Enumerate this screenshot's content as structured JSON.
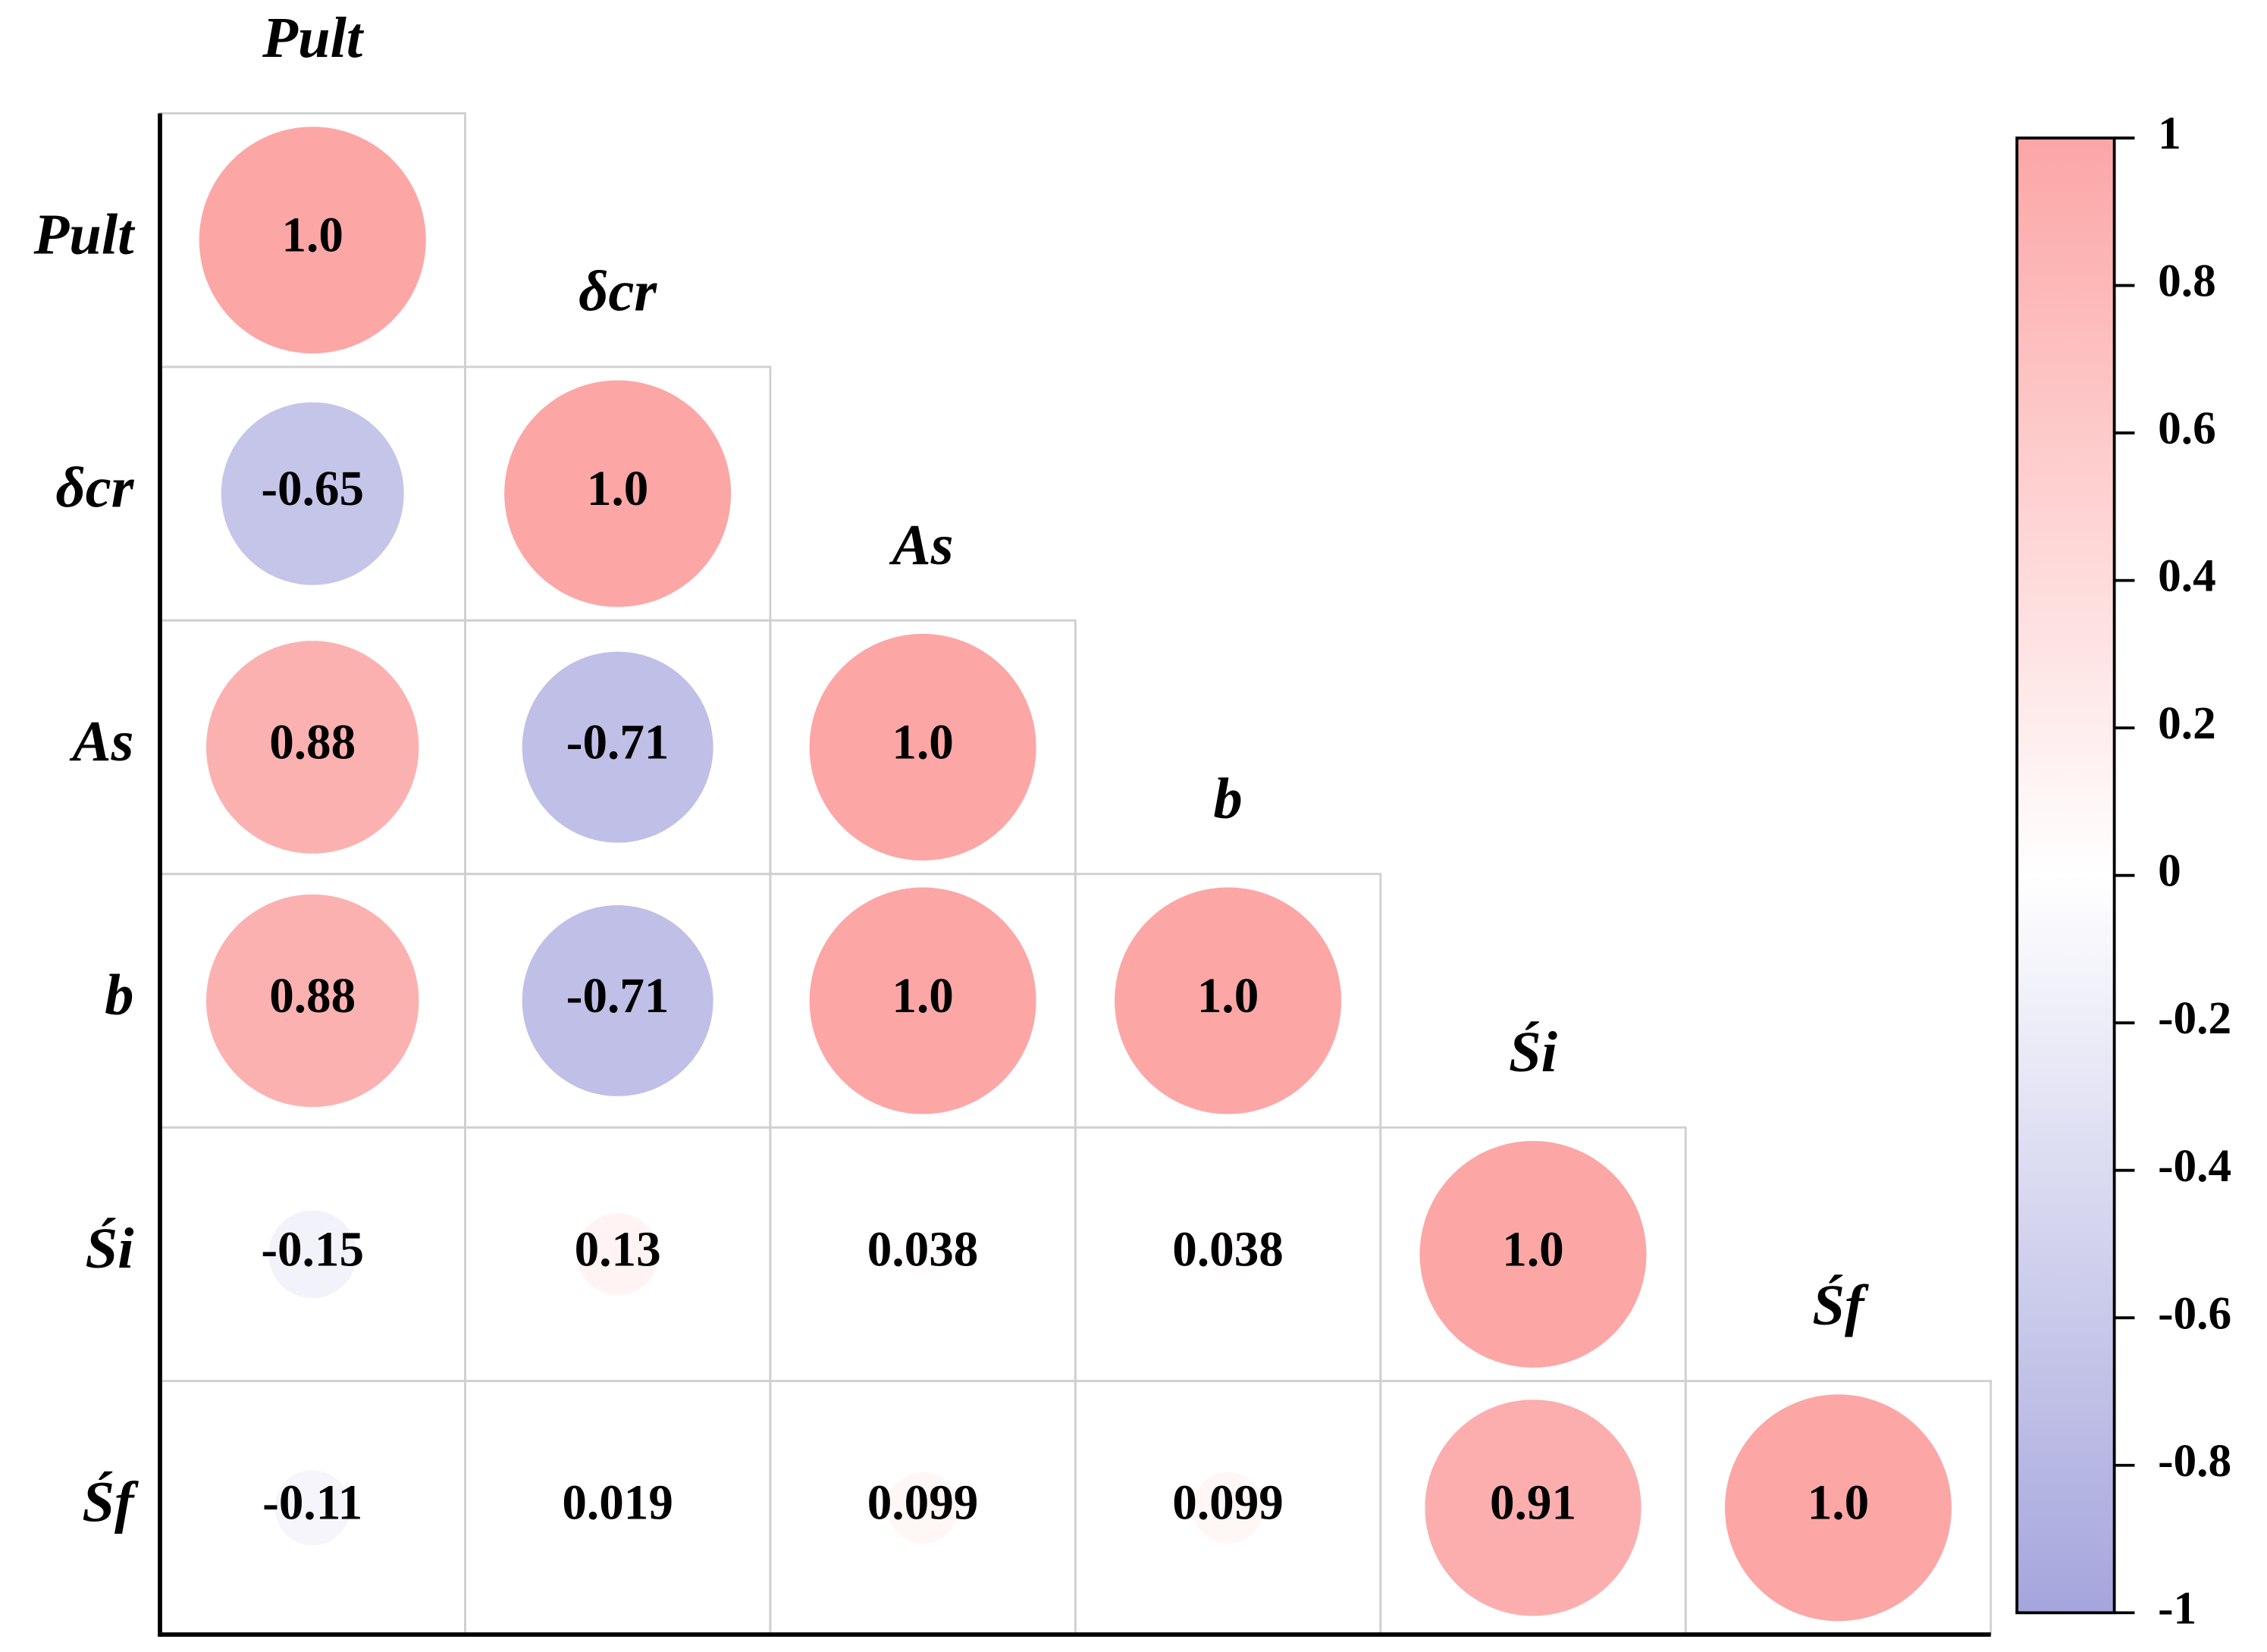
{
  "chart_data": {
    "type": "correlation",
    "categories": [
      "Pult",
      "δcr",
      "As",
      "b",
      "Śi",
      "Śf"
    ],
    "values": [
      [
        1
      ],
      [
        -0.65,
        1
      ],
      [
        0.88,
        -0.71,
        1
      ],
      [
        0.88,
        -0.71,
        1,
        1
      ],
      [
        -0.15,
        0.13,
        0.038,
        0.038,
        1
      ],
      [
        -0.11,
        0.019,
        0.099,
        0.099,
        0.91,
        1
      ]
    ],
    "value_labels": [
      [
        "1.0"
      ],
      [
        "-0.65",
        "1.0"
      ],
      [
        "0.88",
        "-0.71",
        "1.0"
      ],
      [
        "0.88",
        "-0.71",
        "1.0",
        "1.0"
      ],
      [
        "-0.15",
        "0.13",
        "0.038",
        "0.038",
        "1.0"
      ],
      [
        "-0.11",
        "0.019",
        "0.099",
        "0.099",
        "0.91",
        "1.0"
      ]
    ],
    "zlim": [
      -1,
      1
    ],
    "zticks": [
      1,
      0.8,
      0.6,
      0.4,
      0.2,
      0,
      -0.2,
      -0.4,
      -0.6,
      -0.8,
      -1
    ],
    "colors": {
      "negative": "#a5a5dd",
      "zero": "#ffffff",
      "positive": "#fca6a6"
    }
  }
}
